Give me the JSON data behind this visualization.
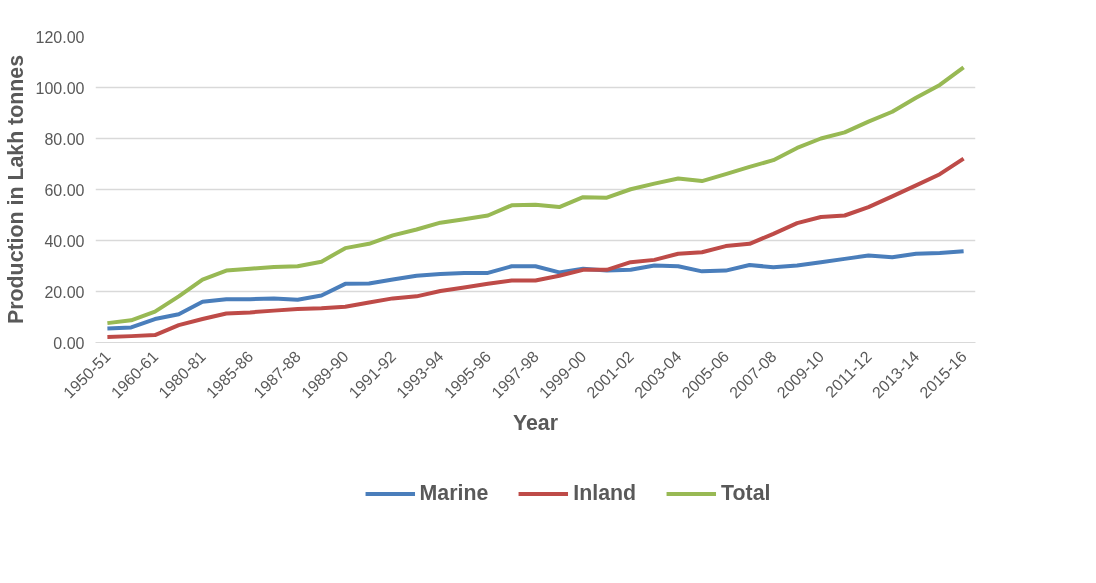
{
  "chart_data": {
    "type": "line",
    "xlabel": "Year",
    "ylabel": "Production in Lakh tonnes",
    "categories": [
      "1950-51",
      null,
      "1960-61",
      null,
      "1980-81",
      null,
      "1985-86",
      null,
      "1987-88",
      null,
      "1989-90",
      null,
      "1991-92",
      null,
      "1993-94",
      null,
      "1995-96",
      null,
      "1997-98",
      null,
      "1999-00",
      null,
      "2001-02",
      null,
      "2003-04",
      null,
      "2005-06",
      null,
      "2007-08",
      null,
      "2009-10",
      null,
      "2011-12",
      null,
      "2013-14",
      null,
      "2015-16"
    ],
    "series": [
      {
        "name": "Marine",
        "color": "#4a7ebb",
        "values": [
          5.5,
          5.9,
          9.2,
          11.1,
          16.0,
          17.0,
          17.0,
          17.3,
          16.8,
          18.4,
          23.0,
          23.1,
          24.7,
          26.2,
          26.9,
          27.3,
          27.3,
          29.9,
          29.9,
          27.5,
          28.9,
          28.2,
          28.5,
          30.2,
          29.9,
          27.9,
          28.2,
          30.4,
          29.5,
          30.2,
          31.5,
          32.8,
          34.1,
          33.4,
          34.8,
          35.1,
          35.8
        ]
      },
      {
        "name": "Inland",
        "color": "#be4b48",
        "values": [
          2.2,
          2.5,
          2.9,
          6.8,
          9.2,
          11.4,
          11.8,
          12.5,
          13.1,
          13.4,
          14.0,
          15.7,
          17.3,
          18.1,
          20.2,
          21.6,
          23.0,
          24.3,
          24.3,
          26.2,
          28.5,
          28.5,
          31.5,
          32.4,
          34.8,
          35.4,
          37.8,
          38.7,
          42.6,
          46.8,
          49.2,
          49.8,
          53.1,
          57.3,
          61.6,
          66.0,
          72.1
        ]
      },
      {
        "name": "Total",
        "color": "#98b954",
        "values": [
          7.6,
          8.7,
          12.1,
          18.1,
          24.7,
          28.2,
          28.9,
          29.6,
          29.9,
          31.7,
          37.0,
          38.7,
          42.0,
          44.3,
          47.0,
          48.3,
          49.8,
          53.8,
          54.0,
          53.1,
          57.0,
          56.8,
          60.1,
          62.3,
          64.3,
          63.3,
          66.0,
          68.9,
          71.5,
          76.3,
          80.0,
          82.4,
          86.6,
          90.5,
          96.0,
          101.0,
          107.9
        ]
      }
    ],
    "ylim": [
      0,
      120
    ],
    "yticks": [
      {
        "value": 0,
        "label": "0.00"
      },
      {
        "value": 20,
        "label": "20.00"
      },
      {
        "value": 40,
        "label": "40.00"
      },
      {
        "value": 60,
        "label": "60.00"
      },
      {
        "value": 80,
        "label": "80.00"
      },
      {
        "value": 100,
        "label": "100.00"
      },
      {
        "value": 120,
        "label": "120.00"
      }
    ],
    "grid": "y",
    "legend": "bottom",
    "marker": "none",
    "line_style": "solid"
  }
}
